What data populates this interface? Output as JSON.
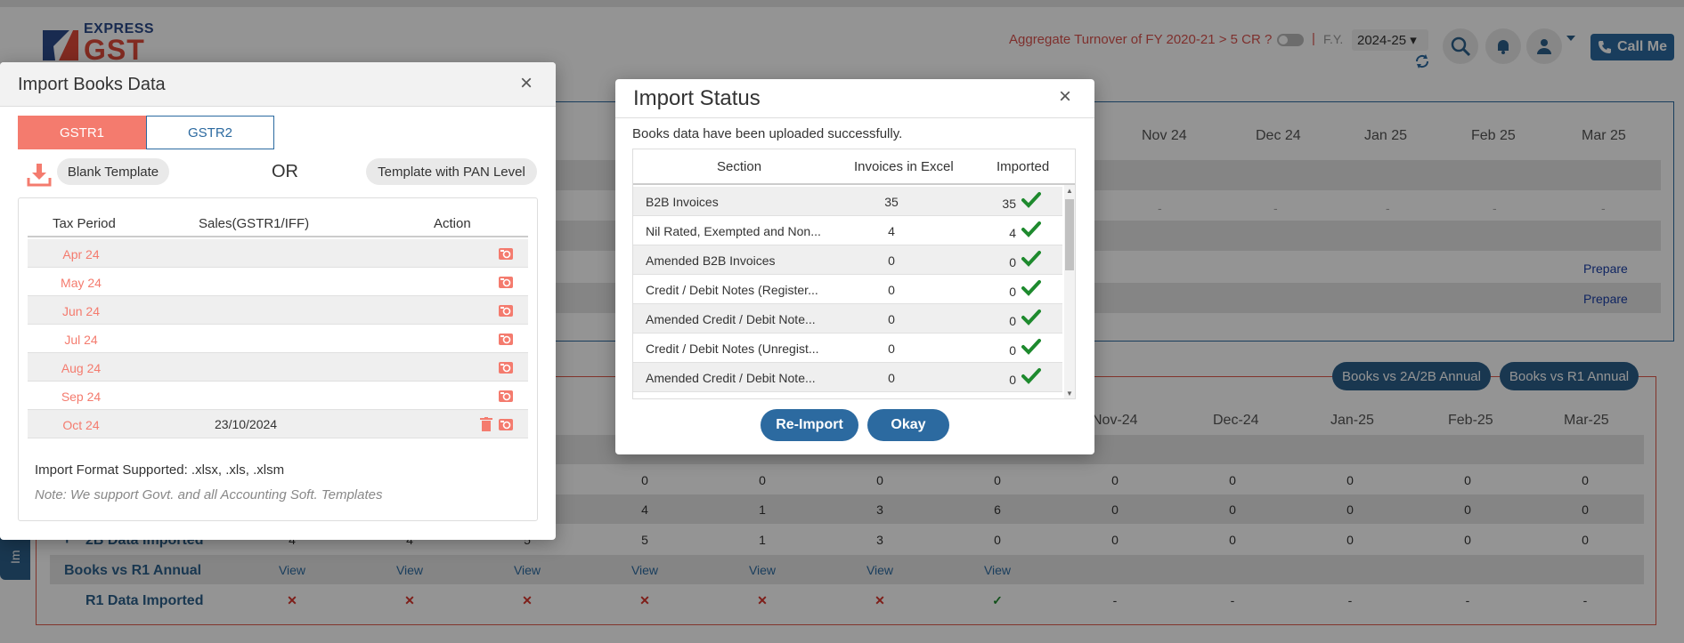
{
  "header": {
    "logo_top": "EXPRESS",
    "logo_bottom": "GST",
    "aggregate_text": "Aggregate Turnover of FY 2020-21 > 5 CR ?",
    "separator": "|",
    "fy_label": "F.Y.",
    "fy_value": "2024-25 ▾",
    "call_me": "Call Me"
  },
  "background": {
    "months_top": [
      "Nov 24",
      "Dec 24",
      "Jan 25",
      "Feb 25",
      "Mar 25"
    ],
    "prepare": [
      "Prepare",
      "Prepare"
    ],
    "buttons": [
      "Books vs 2A/2B Annual",
      "Books vs R1 Annual"
    ],
    "months_bottom": [
      "Nov-24",
      "Dec-24",
      "Jan-25",
      "Feb-25",
      "Mar-25"
    ],
    "row_labels": [
      "2B Data Imported",
      "Books vs R1 Annual",
      "R1 Data Imported"
    ],
    "side_tab": "Im",
    "view": "View",
    "dash": "-",
    "row1": [
      "0",
      "0",
      "0",
      "0",
      "0",
      "0",
      "0",
      "0",
      "0"
    ],
    "row2": [
      "4",
      "1",
      "3",
      "6",
      "0",
      "0",
      "0",
      "0",
      "0"
    ],
    "row3": [
      "4",
      "4",
      "5",
      "5",
      "1",
      "3",
      "0",
      "0",
      "0",
      "0",
      "0",
      "0"
    ]
  },
  "import_books": {
    "title": "Import Books Data",
    "tabs": [
      "GSTR1",
      "GSTR2"
    ],
    "blank_template": "Blank Template",
    "or": "OR",
    "pan_template": "Template with PAN Level",
    "columns": [
      "Tax Period",
      "Sales(GSTR1/IFF)",
      "Action"
    ],
    "rows": [
      {
        "period": "Apr 24",
        "sales": ""
      },
      {
        "period": "May 24",
        "sales": ""
      },
      {
        "period": "Jun 24",
        "sales": ""
      },
      {
        "period": "Jul 24",
        "sales": ""
      },
      {
        "period": "Aug 24",
        "sales": ""
      },
      {
        "period": "Sep 24",
        "sales": ""
      },
      {
        "period": "Oct 24",
        "sales": "23/10/2024"
      }
    ],
    "format_text": "Import Format Supported: .xlsx, .xls, .xlsm",
    "note": "Note: We support Govt. and all Accounting Soft. Templates",
    "close": "×"
  },
  "import_status": {
    "title": "Import Status",
    "message": "Books data have been uploaded successfully.",
    "columns": [
      "Section",
      "Invoices in Excel",
      "Imported"
    ],
    "rows": [
      {
        "section": "B2B Invoices",
        "excel": "35",
        "imported": "35"
      },
      {
        "section": "Nil Rated, Exempted and Non...",
        "excel": "4",
        "imported": "4"
      },
      {
        "section": "Amended B2B Invoices",
        "excel": "0",
        "imported": "0"
      },
      {
        "section": "Credit / Debit Notes (Register...",
        "excel": "0",
        "imported": "0"
      },
      {
        "section": "Amended Credit / Debit Note...",
        "excel": "0",
        "imported": "0"
      },
      {
        "section": "Credit / Debit Notes (Unregist...",
        "excel": "0",
        "imported": "0"
      },
      {
        "section": "Amended Credit / Debit Note...",
        "excel": "0",
        "imported": "0"
      }
    ],
    "reimport": "Re-Import",
    "okay": "Okay",
    "close": "×"
  },
  "colors": {
    "accent": "#2c6aa0",
    "salmon": "#f47b6e",
    "success": "#1e8a2e",
    "danger": "#d9342b"
  }
}
